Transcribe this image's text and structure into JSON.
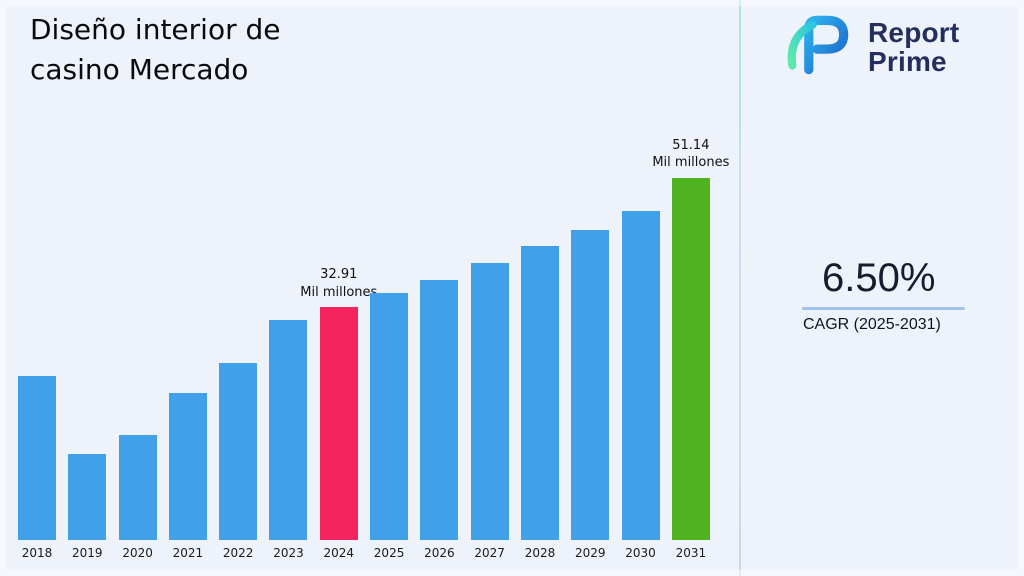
{
  "title": "Diseño interior de\ncasino Mercado",
  "logo": {
    "line1": "Report",
    "line2": "Prime"
  },
  "cagr": {
    "value": "6.50%",
    "label": "CAGR (2025-2031)"
  },
  "colors": {
    "background": "#edf2fb",
    "bar_default": "#41a1e8",
    "bar_highlight_2024": "#f5245f",
    "bar_highlight_2031": "#4fb321",
    "logo_text": "#242f5e",
    "cagr_underline": "#9fc3ee"
  },
  "chart_data": {
    "type": "bar",
    "title": "Diseño interior de casino Mercado",
    "xlabel": "",
    "ylabel": "Mil millones",
    "ylim": [
      0,
      55
    ],
    "grid": false,
    "legend": "none",
    "unit": "Mil millones",
    "categories": [
      "2018",
      "2019",
      "2020",
      "2021",
      "2022",
      "2023",
      "2024",
      "2025",
      "2026",
      "2027",
      "2028",
      "2029",
      "2030",
      "2031"
    ],
    "values": [
      23.2,
      12.1,
      14.9,
      20.7,
      25.0,
      31.1,
      32.91,
      34.9,
      36.8,
      39.1,
      41.5,
      43.8,
      46.5,
      51.14
    ],
    "bar_colors": [
      "#41a1e8",
      "#41a1e8",
      "#41a1e8",
      "#41a1e8",
      "#41a1e8",
      "#41a1e8",
      "#f5245f",
      "#41a1e8",
      "#41a1e8",
      "#41a1e8",
      "#41a1e8",
      "#41a1e8",
      "#41a1e8",
      "#4fb321"
    ],
    "annotations": [
      {
        "category": "2024",
        "lines": [
          "32.91",
          "Mil millones"
        ]
      },
      {
        "category": "2031",
        "lines": [
          "51.14",
          "Mil millones"
        ]
      }
    ]
  }
}
